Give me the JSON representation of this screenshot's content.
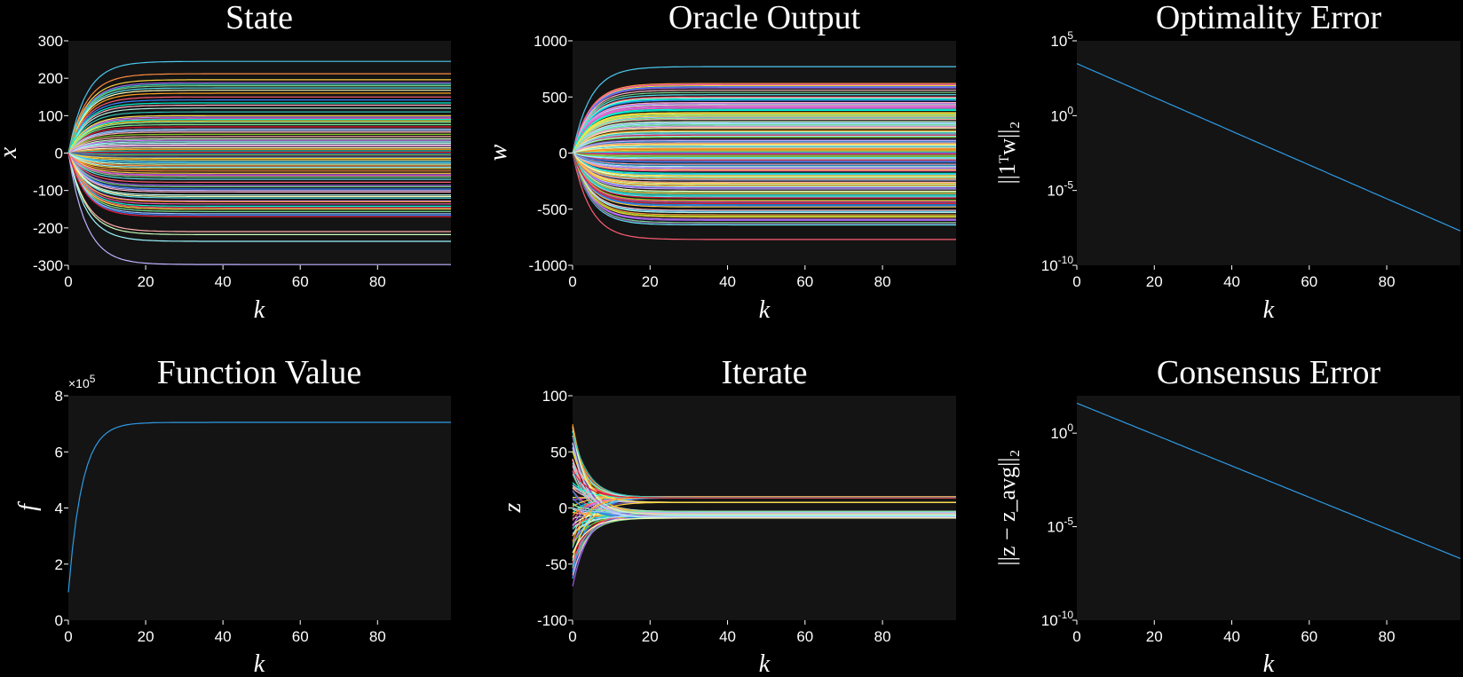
{
  "figure": {
    "background": "#000000",
    "axes_background": "#141414",
    "text_color": "#ffffff"
  },
  "chart_data": [
    {
      "type": "line",
      "title": "State",
      "xlabel": "k",
      "ylabel": "x",
      "xlim": [
        0,
        99
      ],
      "ylim": [
        -300,
        300
      ],
      "xticks": [
        "0",
        "20",
        "40",
        "60",
        "80"
      ],
      "xtick_values": [
        0,
        20,
        40,
        60,
        80
      ],
      "yticks": [
        "300",
        "200",
        "100",
        "0",
        "-100",
        "-200",
        "-300"
      ],
      "ytick_values": [
        300,
        200,
        100,
        0,
        -100,
        -200,
        -300
      ],
      "yscale": "linear",
      "series_count": 80,
      "converge_rate": 0.22,
      "series_final_values": [
        245,
        212,
        196,
        188,
        180,
        174,
        150,
        142,
        128,
        120,
        96,
        92,
        90,
        86,
        82,
        60,
        44,
        38,
        30,
        22,
        14,
        10,
        6,
        2,
        -4,
        -8,
        -12,
        -18,
        -26,
        -34,
        -42,
        -58,
        -64,
        -70,
        -78,
        -96,
        -104,
        -112,
        -128,
        -136,
        -142,
        -150,
        -156,
        -162,
        -210,
        -218,
        -236,
        -298,
        168,
        160,
        110,
        70,
        50,
        18,
        -2,
        -14,
        -22,
        -48,
        -54,
        -86,
        -90,
        -120,
        -146,
        -166,
        20,
        26,
        34,
        -60,
        134,
        100,
        76,
        64,
        56,
        -30,
        -38,
        -100,
        -116,
        -130,
        184,
        -170
      ]
    },
    {
      "type": "line",
      "title": "Oracle Output",
      "xlabel": "k",
      "ylabel": "w",
      "xlim": [
        0,
        99
      ],
      "ylim": [
        -1000,
        1000
      ],
      "xticks": [
        "0",
        "20",
        "40",
        "60",
        "80"
      ],
      "xtick_values": [
        0,
        20,
        40,
        60,
        80
      ],
      "yticks": [
        "1000",
        "500",
        "0",
        "-500",
        "-1000"
      ],
      "ytick_values": [
        1000,
        500,
        0,
        -500,
        -1000
      ],
      "yscale": "linear",
      "series_count": 110,
      "converge_rate": 0.22,
      "series_final_values": [
        770,
        620,
        600,
        580,
        540,
        520,
        500,
        470,
        450,
        430,
        410,
        400,
        380,
        360,
        340,
        320,
        300,
        280,
        260,
        240,
        220,
        200,
        180,
        160,
        140,
        120,
        100,
        80,
        60,
        40,
        20,
        0,
        -20,
        -40,
        -60,
        -80,
        -100,
        -120,
        -140,
        -160,
        -180,
        -200,
        -220,
        -240,
        -260,
        -280,
        -300,
        -320,
        -340,
        -360,
        -380,
        -400,
        -420,
        -440,
        -460,
        -480,
        -520,
        -550,
        -570,
        -600,
        -620,
        -640,
        -770,
        590,
        560,
        490,
        440,
        420,
        390,
        350,
        310,
        270,
        230,
        190,
        150,
        110,
        70,
        30,
        10,
        -10,
        -30,
        -70,
        -110,
        -150,
        -190,
        -230,
        -270,
        -310,
        -350,
        -390,
        -430,
        -470,
        -510,
        -530,
        -590,
        610,
        480,
        330,
        250,
        170,
        90,
        50,
        -50,
        -130,
        -210,
        -290,
        -370,
        -450,
        -560,
        -630
      ]
    },
    {
      "type": "line",
      "title": "Optimality Error",
      "xlabel": "k",
      "ylabel": "||1ᵀw||₂",
      "xlim": [
        0,
        99
      ],
      "ylim": [
        1e-10,
        100000
      ],
      "xticks": [
        "0",
        "20",
        "40",
        "60",
        "80"
      ],
      "xtick_values": [
        0,
        20,
        40,
        60,
        80
      ],
      "yticks": [
        "10",
        "10",
        "10",
        "10"
      ],
      "ytick_exponents": [
        "5",
        "0",
        "-5",
        "-10"
      ],
      "ytick_values": [
        100000,
        1,
        1e-05,
        1e-10
      ],
      "yscale": "log",
      "series": [
        {
          "x": [
            0,
            99
          ],
          "y": [
            3000,
            2e-08
          ]
        }
      ]
    },
    {
      "type": "line",
      "title": "Function Value",
      "xlabel": "k",
      "ylabel": "f",
      "multiplier": "×10",
      "multiplier_exp": "5",
      "xlim": [
        0,
        99
      ],
      "ylim": [
        0,
        8
      ],
      "xticks": [
        "0",
        "20",
        "40",
        "60",
        "80"
      ],
      "xtick_values": [
        0,
        20,
        40,
        60,
        80
      ],
      "yticks": [
        "8",
        "6",
        "4",
        "2",
        "0"
      ],
      "ytick_values": [
        8,
        6,
        4,
        2,
        0
      ],
      "yscale": "linear",
      "series": [
        {
          "start": 1.0,
          "final": 7.05,
          "converge_rate": 0.28
        }
      ]
    },
    {
      "type": "line",
      "title": "Iterate",
      "xlabel": "k",
      "ylabel": "z",
      "xlim": [
        0,
        99
      ],
      "ylim": [
        -100,
        100
      ],
      "xticks": [
        "0",
        "20",
        "40",
        "60",
        "80"
      ],
      "xtick_values": [
        0,
        20,
        40,
        60,
        80
      ],
      "yticks": [
        "100",
        "50",
        "0",
        "-50",
        "-100"
      ],
      "ytick_values": [
        100,
        50,
        0,
        -50,
        -100
      ],
      "yscale": "linear",
      "series_count": 80,
      "converge_rate": 0.25,
      "series_final_values": [
        10,
        9.5,
        9,
        5,
        -3,
        -4,
        -5,
        -6,
        -7,
        -8,
        -9
      ],
      "series_start_range": [
        -70,
        75
      ]
    },
    {
      "type": "line",
      "title": "Consensus Error",
      "xlabel": "k",
      "ylabel": "||z − z_avg||₂",
      "xlim": [
        0,
        99
      ],
      "ylim": [
        1e-10,
        100
      ],
      "xticks": [
        "0",
        "20",
        "40",
        "60",
        "80"
      ],
      "xtick_values": [
        0,
        20,
        40,
        60,
        80
      ],
      "yticks": [
        "10",
        "10",
        "10"
      ],
      "ytick_exponents": [
        "0",
        "-5",
        "-10"
      ],
      "ytick_values": [
        1,
        1e-05,
        1e-10
      ],
      "yscale": "log",
      "series": [
        {
          "x": [
            0,
            99
          ],
          "y": [
            40,
            2e-07
          ]
        }
      ]
    }
  ],
  "palette": [
    "#4cc9f0",
    "#ff8c42",
    "#ffd23f",
    "#9b5de5",
    "#7bd389",
    "#5ee6f0",
    "#ff5d73",
    "#3a86ff",
    "#ffb3c6",
    "#b8f2e6",
    "#c77dff",
    "#f15bb5",
    "#00f5d4",
    "#fee440",
    "#80ed99",
    "#a0c4ff",
    "#ffadad",
    "#caffbf",
    "#9bf6ff",
    "#bdb2ff",
    "#fdffb6",
    "#ff9f1c",
    "#2ec4b6",
    "#e71d36",
    "#8ac926",
    "#6a4c93",
    "#1982c4",
    "#ffca3a"
  ],
  "single_line_color": "#2e9be6"
}
